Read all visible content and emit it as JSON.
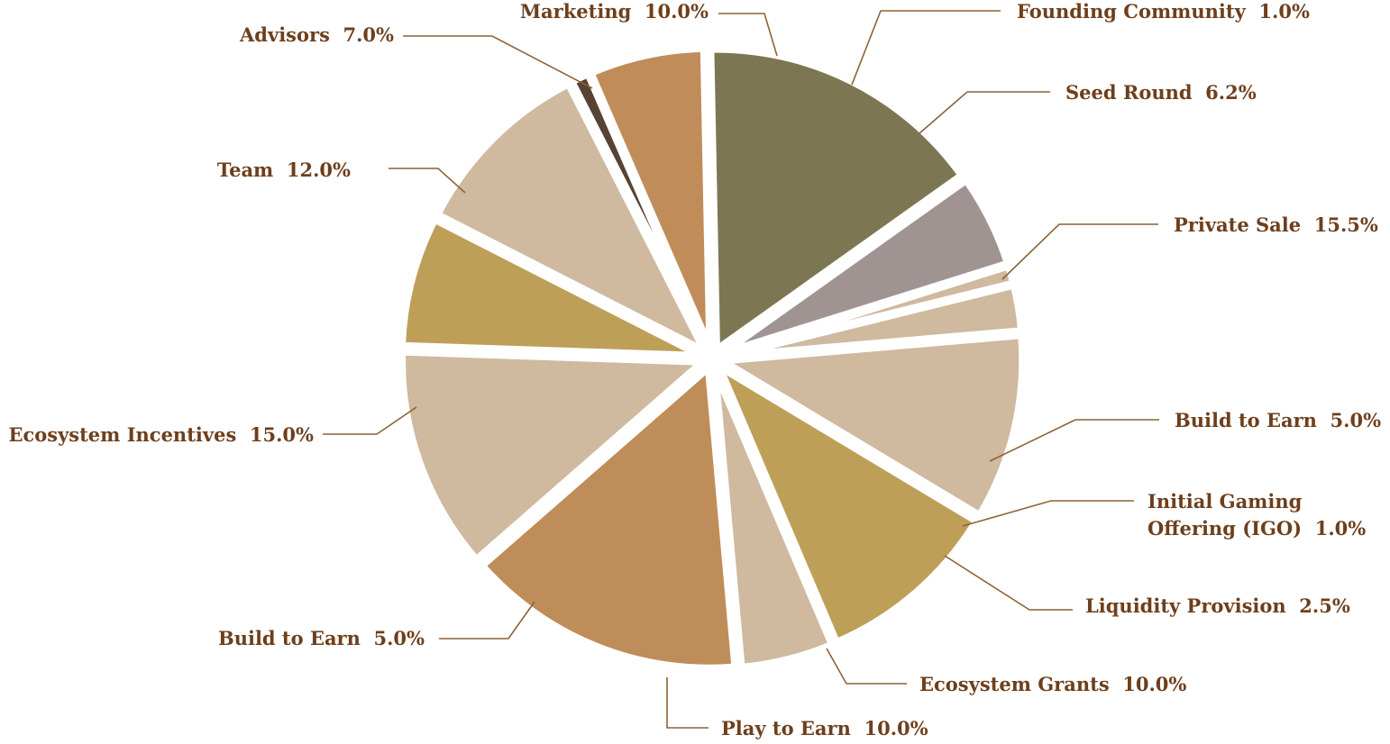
{
  "chart_data": {
    "type": "pie",
    "title": "",
    "start_angle_deg": -27,
    "direction": "clockwise",
    "label_color": "#6e3f1c",
    "leader_color": "#8c6236",
    "slices": [
      {
        "name": "Founding Community",
        "value": 1.0,
        "label": "1.0%",
        "color": "#574333"
      },
      {
        "name": "Seed Round",
        "value": 6.2,
        "label": "6.2%",
        "color": "#c08d5a"
      },
      {
        "name": "Private Sale",
        "value": 15.5,
        "label": "15.5%",
        "color": "#7c7752"
      },
      {
        "name": "Build to Earn",
        "value": 5.0,
        "label": "5.0%",
        "color": "#9f9492"
      },
      {
        "name": "Initial Gaming Offering (IGO)",
        "value": 1.0,
        "label": "1.0%",
        "color": "#cfb99f"
      },
      {
        "name": "Liquidity Provision",
        "value": 2.5,
        "label": "2.5%",
        "color": "#cfb99f"
      },
      {
        "name": "Ecosystem Grants",
        "value": 10.0,
        "label": "10.0%",
        "color": "#cfb99f"
      },
      {
        "name": "Play to Earn",
        "value": 10.0,
        "label": "10.0%",
        "color": "#bd9f58"
      },
      {
        "name": "Build to Earn",
        "value": 5.0,
        "label": "5.0%",
        "color": "#cfb99f"
      },
      {
        "name": "Ecosystem Incentives",
        "value": 15.0,
        "label": "15.0%",
        "color": "#bf8d59"
      },
      {
        "name": "Team",
        "value": 12.0,
        "label": "12.0%",
        "color": "#cfb99f"
      },
      {
        "name": "Advisors",
        "value": 7.0,
        "label": "7.0%",
        "color": "#bd9f58"
      },
      {
        "name": "Marketing",
        "value": 10.0,
        "label": "10.0%",
        "color": "#cfb99f"
      }
    ]
  }
}
